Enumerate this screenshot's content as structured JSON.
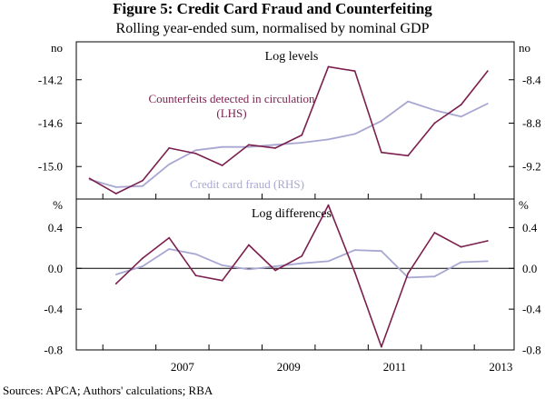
{
  "title": "Figure 5: Credit Card Fraud and Counterfeiting",
  "subtitle": "Rolling year-ended sum, normalised by nominal GDP",
  "sources": "Sources:   APCA; Authors' calculations; RBA",
  "colors": {
    "counterfeits": "#7b1f4e",
    "fraud": "#a7a7d2",
    "axis": "#000000",
    "zero_line": "#000000"
  },
  "x_axis": {
    "ticks": [
      2007,
      2009,
      2011,
      2013
    ],
    "labels": [
      "2007",
      "2009",
      "2011",
      "2013"
    ],
    "range": [
      2005.5,
      2013.75
    ]
  },
  "chart_data": [
    {
      "type": "line",
      "title": "Log levels",
      "left_unit": "no",
      "right_unit": "no",
      "left_axis": {
        "ticks": [
          -14.2,
          -14.6,
          -15.0
        ],
        "labels": [
          "-14.2",
          "-14.6",
          "-15.0"
        ],
        "range": [
          -15.3,
          -13.85
        ]
      },
      "right_axis": {
        "ticks": [
          -8.4,
          -8.8,
          -9.2
        ],
        "labels": [
          "-8.4",
          "-8.8",
          "-9.2"
        ],
        "range": [
          -9.5,
          -8.05
        ]
      },
      "annotations": [
        {
          "series": "Counterfeits detected in circulation (LHS)",
          "lines": [
            "Counterfeits detected in circulation",
            "(LHS)"
          ]
        },
        {
          "series": "Credit card fraud (RHS)",
          "lines": [
            "Credit card fraud (RHS)"
          ]
        }
      ],
      "series": [
        {
          "name": "Counterfeits detected in circulation (LHS)",
          "axis": "left",
          "x": [
            2005.75,
            2006.25,
            2006.75,
            2007.25,
            2007.75,
            2008.25,
            2008.75,
            2009.25,
            2009.75,
            2010.25,
            2010.75,
            2011.25,
            2011.75,
            2012.25,
            2012.75,
            2013.25
          ],
          "values": [
            -15.11,
            -15.25,
            -15.13,
            -14.83,
            -14.88,
            -14.99,
            -14.8,
            -14.83,
            -14.71,
            -14.08,
            -14.12,
            -14.87,
            -14.9,
            -14.6,
            -14.43,
            -14.12
          ]
        },
        {
          "name": "Credit card fraud (RHS)",
          "axis": "right",
          "x": [
            2005.75,
            2006.25,
            2006.75,
            2007.25,
            2007.75,
            2008.25,
            2008.75,
            2009.25,
            2009.75,
            2010.25,
            2010.75,
            2011.25,
            2011.75,
            2012.25,
            2012.75,
            2013.25
          ],
          "values": [
            -9.32,
            -9.39,
            -9.38,
            -9.18,
            -9.05,
            -9.02,
            -9.02,
            -9.0,
            -8.98,
            -8.95,
            -8.9,
            -8.78,
            -8.6,
            -8.68,
            -8.74,
            -8.62
          ]
        }
      ]
    },
    {
      "type": "line",
      "title": "Log differences",
      "left_unit": "%",
      "right_unit": "%",
      "left_axis": {
        "ticks": [
          0.4,
          0.0,
          -0.4,
          -0.8
        ],
        "labels": [
          "0.4",
          "0.0",
          "-0.4",
          "-0.8"
        ],
        "range": [
          -0.8,
          0.68
        ]
      },
      "right_axis": {
        "ticks": [
          0.4,
          0.0,
          -0.4,
          -0.8
        ],
        "labels": [
          "0.4",
          "0.0",
          "-0.4",
          "-0.8"
        ],
        "range": [
          -0.8,
          0.68
        ]
      },
      "series": [
        {
          "name": "Counterfeits detected in circulation (LHS)",
          "axis": "left",
          "x": [
            2006.25,
            2006.75,
            2007.25,
            2007.75,
            2008.25,
            2008.75,
            2009.25,
            2009.75,
            2010.25,
            2010.75,
            2011.25,
            2011.75,
            2012.25,
            2012.75,
            2013.25
          ],
          "values": [
            -0.15,
            0.1,
            0.3,
            -0.07,
            -0.12,
            0.23,
            -0.02,
            0.12,
            0.62,
            -0.04,
            -0.77,
            -0.05,
            0.35,
            0.21,
            0.27
          ]
        },
        {
          "name": "Credit card fraud (RHS)",
          "axis": "right",
          "x": [
            2006.25,
            2006.75,
            2007.25,
            2007.75,
            2008.25,
            2008.75,
            2009.25,
            2009.75,
            2010.25,
            2010.75,
            2011.25,
            2011.75,
            2012.25,
            2012.75,
            2013.25
          ],
          "values": [
            -0.06,
            0.02,
            0.19,
            0.14,
            0.03,
            -0.01,
            0.02,
            0.05,
            0.07,
            0.18,
            0.17,
            -0.09,
            -0.08,
            0.06,
            0.07
          ]
        }
      ]
    }
  ]
}
